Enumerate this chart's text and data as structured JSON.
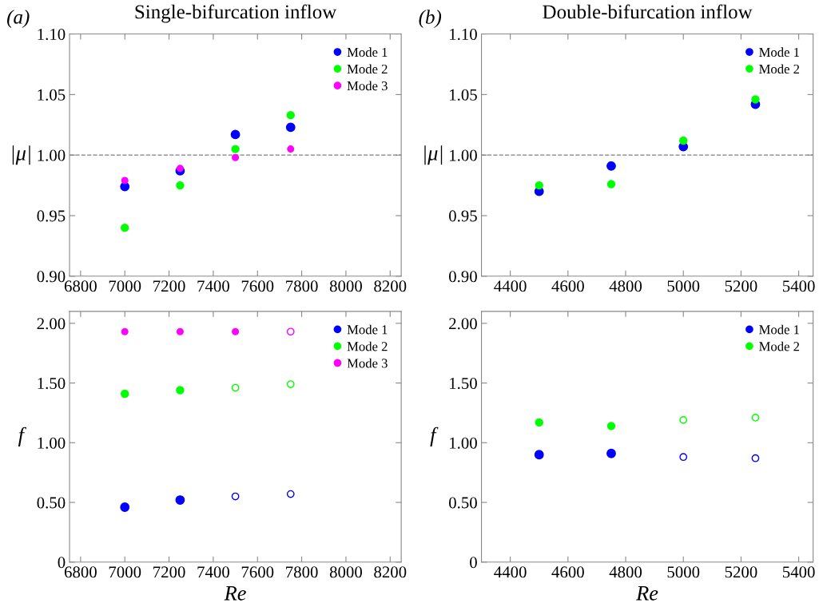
{
  "chart_data": [
    {
      "type": "scatter",
      "title": "Single-bifurcation inflow",
      "ylabel": "|μ|",
      "annotations": [
        "(a)"
      ],
      "x": [
        7000,
        7250,
        7500,
        7750
      ],
      "xlim": [
        6750,
        8250
      ],
      "xticks": [
        6800,
        7000,
        7200,
        7400,
        7600,
        7800,
        8000,
        8200
      ],
      "ylim": [
        0.9,
        1.1
      ],
      "yticks": [
        {
          "value": 0.9,
          "label": "0.90"
        },
        {
          "value": 0.95,
          "label": "0.95"
        },
        {
          "value": 1.0,
          "label": "1.00"
        },
        {
          "value": 1.05,
          "label": "1.05"
        },
        {
          "value": 1.1,
          "label": "1.10"
        }
      ],
      "marker": "circle",
      "legend": "top right",
      "grid": false,
      "ref_lines": [
        {
          "axis": "y",
          "value": 1.0,
          "color": "#808080",
          "line_style": "dashed"
        }
      ],
      "series": [
        {
          "name": "Mode 1",
          "color": "#0000ff",
          "values": [
            0.974,
            0.987,
            1.017,
            1.023
          ]
        },
        {
          "name": "Mode 2",
          "color": "#00ff00",
          "values": [
            0.94,
            0.975,
            1.005,
            1.033
          ]
        },
        {
          "name": "Mode 3",
          "color": "#ff00ff",
          "values": [
            0.979,
            0.989,
            0.998,
            1.005
          ]
        }
      ]
    },
    {
      "type": "scatter",
      "title": "Double-bifurcation inflow",
      "ylabel": "|μ|",
      "annotations": [
        "(b)"
      ],
      "x": [
        4500,
        4750,
        5000,
        5250
      ],
      "xlim": [
        4300,
        5450
      ],
      "xticks": [
        4400,
        4600,
        4800,
        5000,
        5200,
        5400
      ],
      "ylim": [
        0.9,
        1.1
      ],
      "yticks": [
        {
          "value": 0.9,
          "label": "0.90"
        },
        {
          "value": 0.95,
          "label": "0.95"
        },
        {
          "value": 1.0,
          "label": "1.00"
        },
        {
          "value": 1.05,
          "label": "1.05"
        },
        {
          "value": 1.1,
          "label": "1.10"
        }
      ],
      "marker": "circle",
      "legend": "top right",
      "grid": false,
      "ref_lines": [
        {
          "axis": "y",
          "value": 1.0,
          "color": "#808080",
          "line_style": "dashed"
        }
      ],
      "series": [
        {
          "name": "Mode 1",
          "color": "#0000ff",
          "values": [
            0.97,
            0.991,
            1.007,
            1.042
          ]
        },
        {
          "name": "Mode 2",
          "color": "#00ff00",
          "values": [
            0.975,
            0.976,
            1.012,
            1.046
          ]
        }
      ]
    },
    {
      "type": "scatter",
      "xlabel": "Re",
      "ylabel": "f",
      "x": [
        7000,
        7250,
        7500,
        7750
      ],
      "xlim": [
        6750,
        8250
      ],
      "xticks": [
        6800,
        7000,
        7200,
        7400,
        7600,
        7800,
        8000,
        8200
      ],
      "ylim": [
        0,
        2.1
      ],
      "yticks": [
        0,
        {
          "value": 0.5,
          "label": "0.50"
        },
        {
          "value": 1.0,
          "label": "1.00"
        },
        {
          "value": 1.5,
          "label": "1.50"
        },
        {
          "value": 2.0,
          "label": "2.00"
        }
      ],
      "marker": "circle",
      "legend": "top right",
      "grid": false,
      "series": [
        {
          "name": "Mode 1",
          "color": "#0000ff",
          "values": [
            0.46,
            0.52,
            null,
            null
          ]
        },
        {
          "name": "Mode 2",
          "color": "#00ff00",
          "values": [
            1.41,
            1.44,
            null,
            null
          ]
        },
        {
          "name": "Mode 3",
          "color": "#ff00ff",
          "values": [
            1.93,
            1.93,
            1.93,
            null
          ]
        },
        {
          "color": "#0000ff",
          "values": [
            null,
            null,
            0.55,
            0.57
          ]
        },
        {
          "color": "#00ff00",
          "values": [
            null,
            null,
            1.46,
            1.49
          ]
        },
        {
          "color": "#ff00ff",
          "values": [
            null,
            null,
            null,
            1.93
          ]
        }
      ]
    },
    {
      "type": "scatter",
      "xlabel": "Re",
      "ylabel": "f",
      "x": [
        4500,
        4750,
        5000,
        5250
      ],
      "xlim": [
        4300,
        5450
      ],
      "xticks": [
        4400,
        4600,
        4800,
        5000,
        5200,
        5400
      ],
      "ylim": [
        0,
        2.1
      ],
      "yticks": [
        0,
        {
          "value": 0.5,
          "label": "0.50"
        },
        {
          "value": 1.0,
          "label": "1.00"
        },
        {
          "value": 1.5,
          "label": "1.50"
        },
        {
          "value": 2.0,
          "label": "2.00"
        }
      ],
      "marker": "circle",
      "legend": "top right",
      "grid": false,
      "series": [
        {
          "name": "Mode 1",
          "color": "#0000ff",
          "values": [
            0.9,
            0.91,
            null,
            null
          ]
        },
        {
          "name": "Mode 2",
          "color": "#00ff00",
          "values": [
            1.17,
            1.14,
            null,
            null
          ]
        },
        {
          "color": "#0000ff",
          "values": [
            null,
            null,
            0.88,
            0.87
          ]
        },
        {
          "color": "#00ff00",
          "values": [
            null,
            null,
            1.19,
            1.21
          ]
        }
      ]
    }
  ]
}
